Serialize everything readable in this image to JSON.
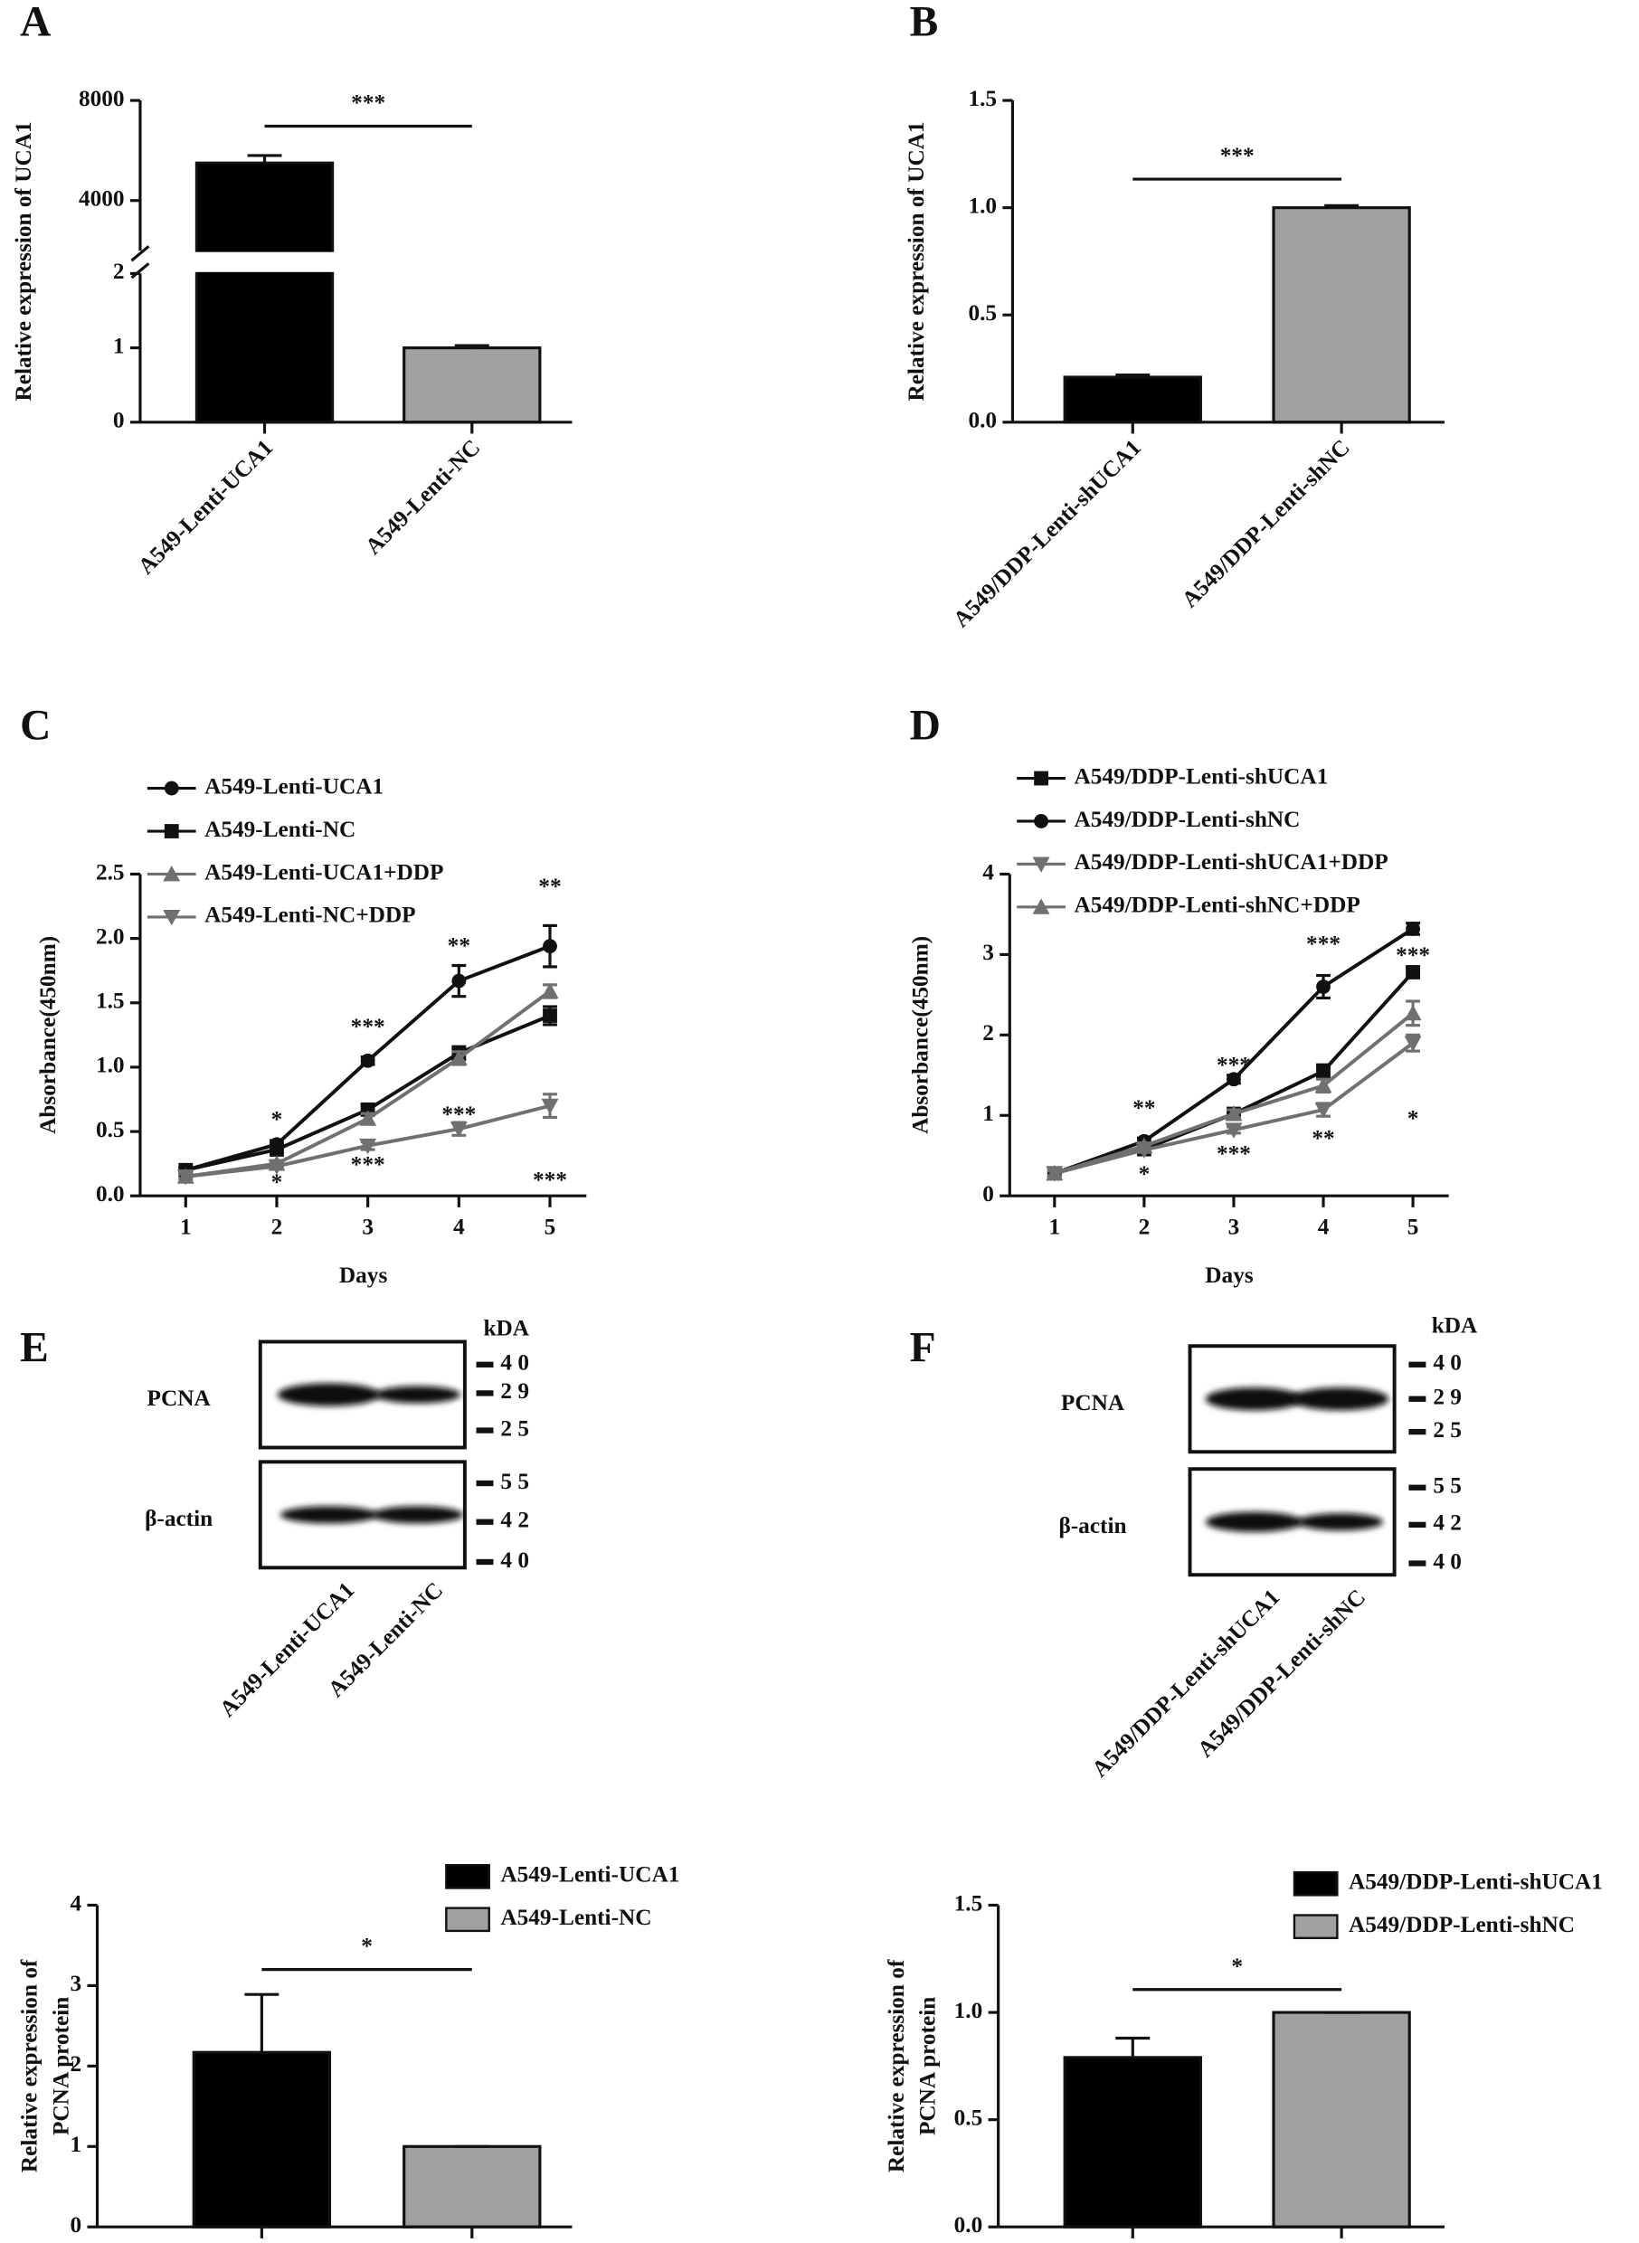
{
  "chart_data": [
    {
      "type": "bar",
      "label": "A",
      "ylabel": "Relative expression of UCA1",
      "categories": [
        "A549-Lenti-UCA1",
        "A549-Lenti-NC"
      ],
      "values": [
        5500,
        1
      ],
      "errors": [
        300,
        0.03
      ],
      "colors": [
        "#000000",
        "#a0a0a0"
      ],
      "ylim": [
        0,
        8000
      ],
      "ybreak": [
        2,
        2000
      ],
      "yticks": [
        0,
        1,
        2,
        4000,
        8000
      ],
      "significance": "***"
    },
    {
      "type": "bar",
      "label": "B",
      "ylabel": "Relative expression of UCA1",
      "categories": [
        "A549/DDP-Lenti-shUCA1",
        "A549/DDP-Lenti-shNC"
      ],
      "values": [
        0.21,
        1.0
      ],
      "errors": [
        0.01,
        0.01
      ],
      "colors": [
        "#000000",
        "#a0a0a0"
      ],
      "ylim": [
        0,
        1.5
      ],
      "yticks": [
        {
          "value": 0,
          "label": "0.0"
        },
        {
          "value": 0.5,
          "label": "0.5"
        },
        {
          "value": 1,
          "label": "1.0"
        },
        {
          "value": 1.5,
          "label": "1.5"
        }
      ],
      "significance": "***"
    },
    {
      "type": "line",
      "label": "C",
      "xlabel": "Days",
      "ylabel": "Absorbance(450nm)",
      "x": [
        1,
        2,
        3,
        4,
        5
      ],
      "xlim": [
        0.5,
        5.4
      ],
      "xticks": [
        1,
        2,
        3,
        4,
        5
      ],
      "ylim": [
        0,
        2.5
      ],
      "yticks": [
        {
          "value": 0,
          "label": "0.0"
        },
        {
          "value": 0.5,
          "label": "0.5"
        },
        {
          "value": 1,
          "label": "1.0"
        },
        {
          "value": 1.5,
          "label": "1.5"
        },
        {
          "value": 2,
          "label": "2.0"
        },
        {
          "value": 2.5,
          "label": "2.5"
        }
      ],
      "series": [
        {
          "name": "A549-Lenti-UCA1",
          "color": "#111111",
          "marker": "circle",
          "values": [
            0.2,
            0.4,
            1.05,
            1.67,
            1.94
          ],
          "errors": [
            0.02,
            0.03,
            0.03,
            0.12,
            0.16
          ]
        },
        {
          "name": "A549-Lenti-NC",
          "color": "#111111",
          "marker": "square",
          "values": [
            0.2,
            0.36,
            0.67,
            1.11,
            1.4
          ],
          "errors": [
            0.02,
            0.03,
            0.04,
            0.05,
            0.07
          ]
        },
        {
          "name": "A549-Lenti-UCA1+DDP",
          "color": "#707070",
          "marker": "triangle-up",
          "values": [
            0.15,
            0.25,
            0.6,
            1.07,
            1.59
          ],
          "errors": [
            0.02,
            0.02,
            0.04,
            0.05,
            0.05
          ]
        },
        {
          "name": "A549-Lenti-NC+DDP",
          "color": "#707070",
          "marker": "triangle-down",
          "values": [
            0.15,
            0.23,
            0.39,
            0.52,
            0.7
          ],
          "errors": [
            0.02,
            0.02,
            0.03,
            0.05,
            0.09
          ]
        }
      ],
      "annotations": [
        {
          "text": "*",
          "x": 2,
          "y": 0.58
        },
        {
          "text": "*",
          "x": 2,
          "y": 0.09
        },
        {
          "text": "***",
          "x": 3,
          "y": 1.3
        },
        {
          "text": "***",
          "x": 3,
          "y": 0.23
        },
        {
          "text": "**",
          "x": 4,
          "y": 1.93
        },
        {
          "text": "***",
          "x": 4,
          "y": 0.62
        },
        {
          "text": "**",
          "x": 5,
          "y": 2.39
        },
        {
          "text": "***",
          "x": 5,
          "y": 0.11
        }
      ]
    },
    {
      "type": "line",
      "label": "D",
      "xlabel": "Days",
      "ylabel": "Absorbance(450nm)",
      "x": [
        1,
        2,
        3,
        4,
        5
      ],
      "xlim": [
        0.5,
        5.4
      ],
      "xticks": [
        1,
        2,
        3,
        4,
        5
      ],
      "ylim": [
        0,
        4
      ],
      "yticks": [
        0,
        1,
        2,
        3,
        4
      ],
      "series": [
        {
          "name": "A549/DDP-Lenti-shUCA1",
          "color": "#111111",
          "marker": "square",
          "values": [
            0.28,
            0.58,
            1.02,
            1.55,
            2.78
          ],
          "errors": [
            0.03,
            0.04,
            0.05,
            0.08,
            0.06
          ]
        },
        {
          "name": "A549/DDP-Lenti-shNC",
          "color": "#111111",
          "marker": "circle",
          "values": [
            0.28,
            0.68,
            1.45,
            2.6,
            3.32
          ],
          "errors": [
            0.03,
            0.04,
            0.05,
            0.14,
            0.07
          ]
        },
        {
          "name": "A549/DDP-Lenti-shUCA1+DDP",
          "color": "#707070",
          "marker": "triangle-down",
          "values": [
            0.28,
            0.57,
            0.82,
            1.07,
            1.9
          ],
          "errors": [
            0.03,
            0.03,
            0.04,
            0.08,
            0.1
          ]
        },
        {
          "name": "A549/DDP-Lenti-shNC+DDP",
          "color": "#707070",
          "marker": "triangle-up",
          "values": [
            0.28,
            0.62,
            1.02,
            1.37,
            2.27
          ],
          "errors": [
            0.03,
            0.04,
            0.05,
            0.08,
            0.15
          ]
        }
      ],
      "annotations": [
        {
          "text": "**",
          "x": 2,
          "y": 1.07
        },
        {
          "text": "*",
          "x": 2,
          "y": 0.25
        },
        {
          "text": "***",
          "x": 3,
          "y": 1.6
        },
        {
          "text": "***",
          "x": 3,
          "y": 0.5
        },
        {
          "text": "***",
          "x": 4,
          "y": 3.11
        },
        {
          "text": "**",
          "x": 4,
          "y": 0.69
        },
        {
          "text": "***",
          "x": 5,
          "y": 2.97
        },
        {
          "text": "*",
          "x": 5,
          "y": 0.94
        }
      ]
    },
    {
      "type": "bar",
      "ylabel": [
        "Relative expression of",
        "PCNA protein"
      ],
      "categories": [
        "A549-Lenti-UCA1",
        "A549-Lenti-NC"
      ],
      "values": [
        2.17,
        1.0
      ],
      "errors": [
        0.72,
        0
      ],
      "colors": [
        "#000000",
        "#a0a0a0"
      ],
      "ylim": [
        0,
        4
      ],
      "yticks": [
        0,
        1,
        2,
        3,
        4
      ],
      "significance": "*",
      "legend": "top-right"
    },
    {
      "type": "bar",
      "ylabel": [
        "Relative expression of",
        "PCNA protein"
      ],
      "categories": [
        "A549/DDP-Lenti-shUCA1",
        "A549/DDP-Lenti-shNC"
      ],
      "values": [
        0.79,
        1.0
      ],
      "errors": [
        0.09,
        0
      ],
      "colors": [
        "#000000",
        "#a0a0a0"
      ],
      "ylim": [
        0,
        1.5
      ],
      "yticks": [
        {
          "value": 0,
          "label": "0.0"
        },
        {
          "value": 0.5,
          "label": "0.5"
        },
        {
          "value": 1,
          "label": "1.0"
        },
        {
          "value": 1.5,
          "label": "1.5"
        }
      ],
      "significance": "*",
      "legend": "top-right"
    }
  ],
  "blots": [
    {
      "label": "E",
      "unit": "kDA",
      "lanes": [
        "A549-Lenti-UCA1",
        "A549-Lenti-NC"
      ],
      "rows": [
        {
          "protein": "PCNA",
          "markers": [
            "40",
            "29",
            "25"
          ]
        },
        {
          "protein": "β-actin",
          "markers": [
            "55",
            "42",
            "40"
          ]
        }
      ]
    },
    {
      "label": "F",
      "unit": "kDA",
      "lanes": [
        "A549/DDP-Lenti-shUCA1",
        "A549/DDP-Lenti-shNC"
      ],
      "rows": [
        {
          "protein": "PCNA",
          "markers": [
            "40",
            "29",
            "25"
          ]
        },
        {
          "protein": "β-actin",
          "markers": [
            "55",
            "42",
            "40"
          ]
        }
      ]
    }
  ]
}
